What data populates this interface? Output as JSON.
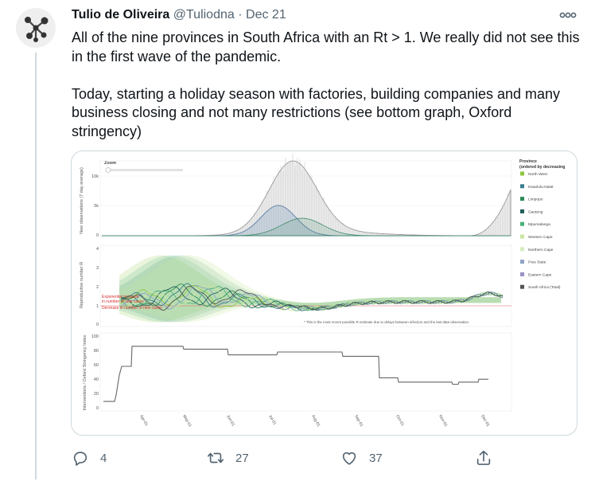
{
  "tweet": {
    "author": {
      "name": "Tulio de Oliveira",
      "handle": "@Tuliodna",
      "avatar_icon": "network-logo-icon"
    },
    "separator": "·",
    "date": "Dec 21",
    "menu_icon": "more-horizontal-icon",
    "text": {
      "paragraph1": "All of the nine provinces in South Africa with an Rt > 1. We really did not see this in the first wave of the pandemic.",
      "paragraph2": "Today, starting a holiday season with factories, building companies and many business closing and not many restrictions (see bottom graph, Oxford stringency)"
    }
  },
  "media": {
    "zoom_label": "Zoom",
    "top_panel": {
      "ylabel": "New observations (7 day average)",
      "ticks": [
        "10k",
        "5k",
        "0"
      ]
    },
    "mid_panel": {
      "ylabel": "Reproductive number R",
      "ticks": [
        "4",
        "3",
        "2",
        "1",
        "0"
      ],
      "annotation": [
        "Exponential increase",
        "in number of new cases",
        "Decrease in number of new cases"
      ],
      "footnote": "* This is the most recent possible R estimate due to delays between infection and the last data observation."
    },
    "bottom_panel": {
      "ylabel": "Interventions / Oxford Stringency Index",
      "ticks": [
        "100",
        "80",
        "60",
        "40",
        "20",
        "0"
      ]
    },
    "x_ticks": [
      "Apr-01",
      "May-01",
      "Jun-01",
      "Jul-01",
      "Aug-01",
      "Sep-01",
      "Oct-01",
      "Nov-01",
      "Dec-01"
    ],
    "legend": {
      "title": "Province",
      "subtitle": "(ordered by decreasing",
      "items": [
        {
          "label": "North West",
          "color": "#8cc63f"
        },
        {
          "label": "KwaZulu-Natal",
          "color": "#3a7d8c"
        },
        {
          "label": "Limpopo",
          "color": "#2e8b57"
        },
        {
          "label": "Gauteng",
          "color": "#1f5f5b"
        },
        {
          "label": "Mpumalanga",
          "color": "#4caf7a"
        },
        {
          "label": "Western Cape",
          "color": "#c8e6a0"
        },
        {
          "label": "Northern Cape",
          "color": "#d4ecc0"
        },
        {
          "label": "Free State",
          "color": "#8fa4c4"
        },
        {
          "label": "Eastern Cape",
          "color": "#9b8fc4"
        },
        {
          "label": "South Africa (Total)",
          "color": "#555555"
        }
      ]
    }
  },
  "actions": {
    "reply": {
      "icon": "reply-icon",
      "count": "4"
    },
    "retweet": {
      "icon": "retweet-icon",
      "count": "27"
    },
    "like": {
      "icon": "heart-icon",
      "count": "37"
    },
    "share": {
      "icon": "share-icon"
    }
  }
}
